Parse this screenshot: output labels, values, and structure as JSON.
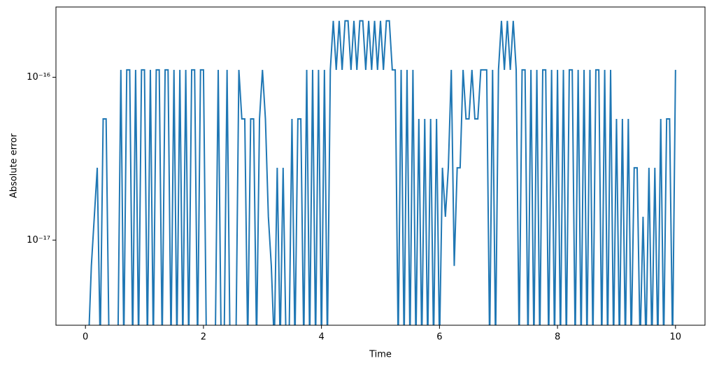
{
  "chart_data": {
    "type": "line",
    "xlabel": "Time",
    "ylabel": "Absolute error",
    "x": [
      0,
      0.05,
      0.1,
      0.15,
      0.2,
      0.25,
      0.3,
      0.35,
      0.4,
      0.45,
      0.5,
      0.55,
      0.6,
      0.65,
      0.7,
      0.75,
      0.8,
      0.85,
      0.9,
      0.95,
      1,
      1.05,
      1.1,
      1.15,
      1.2,
      1.25,
      1.3,
      1.35,
      1.4,
      1.45,
      1.5,
      1.55,
      1.6,
      1.65,
      1.7,
      1.75,
      1.8,
      1.85,
      1.9,
      1.95,
      2,
      2.05,
      2.1,
      2.15,
      2.2,
      2.25,
      2.3,
      2.35,
      2.4,
      2.45,
      2.5,
      2.55,
      2.6,
      2.65,
      2.7,
      2.75,
      2.8,
      2.85,
      2.9,
      2.95,
      3,
      3.05,
      3.1,
      3.15,
      3.2,
      3.25,
      3.3,
      3.35,
      3.4,
      3.45,
      3.5,
      3.55,
      3.6,
      3.65,
      3.7,
      3.75,
      3.8,
      3.85,
      3.9,
      3.95,
      4,
      4.05,
      4.1,
      4.15,
      4.2,
      4.25,
      4.3,
      4.35,
      4.4,
      4.45,
      4.5,
      4.55,
      4.6,
      4.65,
      4.7,
      4.75,
      4.8,
      4.85,
      4.9,
      4.95,
      5,
      5.05,
      5.1,
      5.15,
      5.2,
      5.25,
      5.3,
      5.35,
      5.4,
      5.45,
      5.5,
      5.55,
      5.6,
      5.65,
      5.7,
      5.75,
      5.8,
      5.85,
      5.9,
      5.95,
      6,
      6.05,
      6.1,
      6.15,
      6.2,
      6.25,
      6.3,
      6.35,
      6.4,
      6.45,
      6.5,
      6.55,
      6.6,
      6.65,
      6.7,
      6.75,
      6.8,
      6.85,
      6.9,
      6.95,
      7,
      7.05,
      7.1,
      7.15,
      7.2,
      7.25,
      7.3,
      7.35,
      7.4,
      7.45,
      7.5,
      7.55,
      7.6,
      7.65,
      7.7,
      7.75,
      7.8,
      7.85,
      7.9,
      7.95,
      8,
      8.05,
      8.1,
      8.15,
      8.2,
      8.25,
      8.3,
      8.35,
      8.4,
      8.45,
      8.5,
      8.55,
      8.6,
      8.65,
      8.7,
      8.75,
      8.8,
      8.85,
      8.9,
      8.95,
      9,
      9.05,
      9.1,
      9.15,
      9.2,
      9.25,
      9.3,
      9.35,
      9.4,
      9.45,
      9.5,
      9.55,
      9.6,
      9.65,
      9.7,
      9.75,
      9.8,
      9.85,
      9.9,
      9.95,
      10
    ],
    "values": [
      0,
      0,
      6.94e-18,
      1.39e-17,
      2.78e-17,
      0,
      5.55e-17,
      5.55e-17,
      0,
      0,
      0,
      0,
      1.11e-16,
      0,
      1.11e-16,
      1.11e-16,
      0,
      1.11e-16,
      0,
      1.11e-16,
      1.11e-16,
      0,
      1.11e-16,
      0,
      1.11e-16,
      1.11e-16,
      0,
      1.11e-16,
      1.11e-16,
      0,
      1.11e-16,
      0,
      1.11e-16,
      0,
      1.11e-16,
      0,
      1.11e-16,
      1.11e-16,
      0,
      1.11e-16,
      1.11e-16,
      0,
      0,
      0,
      0,
      1.11e-16,
      0,
      0,
      1.11e-16,
      0,
      0,
      0,
      1.11e-16,
      5.55e-17,
      5.55e-17,
      0,
      5.55e-17,
      5.55e-17,
      0,
      5.55e-17,
      1.11e-16,
      5.55e-17,
      1.39e-17,
      6.94e-18,
      0,
      2.78e-17,
      0,
      2.78e-17,
      0,
      0,
      5.55e-17,
      0,
      5.55e-17,
      5.55e-17,
      0,
      1.11e-16,
      0,
      1.11e-16,
      0,
      1.11e-16,
      0,
      1.11e-16,
      0,
      1.11e-16,
      2.22e-16,
      1.11e-16,
      2.22e-16,
      1.11e-16,
      2.22e-16,
      2.22e-16,
      1.11e-16,
      2.22e-16,
      1.11e-16,
      2.22e-16,
      2.22e-16,
      1.11e-16,
      2.22e-16,
      1.11e-16,
      2.22e-16,
      1.11e-16,
      2.22e-16,
      1.11e-16,
      2.22e-16,
      2.22e-16,
      1.11e-16,
      1.11e-16,
      0,
      1.11e-16,
      0,
      1.11e-16,
      0,
      1.11e-16,
      0,
      5.55e-17,
      0,
      5.55e-17,
      0,
      5.55e-17,
      0,
      5.55e-17,
      0,
      2.78e-17,
      1.39e-17,
      2.78e-17,
      1.11e-16,
      6.94e-18,
      2.78e-17,
      2.78e-17,
      1.11e-16,
      5.55e-17,
      5.55e-17,
      1.11e-16,
      5.55e-17,
      5.55e-17,
      1.11e-16,
      1.11e-16,
      1.11e-16,
      0,
      1.11e-16,
      0,
      1.11e-16,
      2.22e-16,
      1.11e-16,
      2.22e-16,
      1.11e-16,
      2.22e-16,
      1.11e-16,
      0,
      1.11e-16,
      1.11e-16,
      0,
      1.11e-16,
      0,
      1.11e-16,
      0,
      1.11e-16,
      1.11e-16,
      0,
      1.11e-16,
      0,
      1.11e-16,
      0,
      1.11e-16,
      0,
      1.11e-16,
      1.11e-16,
      0,
      1.11e-16,
      0,
      1.11e-16,
      0,
      1.11e-16,
      0,
      1.11e-16,
      1.11e-16,
      0,
      1.11e-16,
      0,
      1.11e-16,
      0,
      5.55e-17,
      0,
      5.55e-17,
      0,
      5.55e-17,
      0,
      2.78e-17,
      2.78e-17,
      0,
      1.39e-17,
      0,
      2.78e-17,
      0,
      2.78e-17,
      0,
      5.55e-17,
      0,
      5.55e-17,
      5.55e-17,
      0,
      1.11e-16
    ],
    "color": "#1f77b4",
    "log_y": true,
    "xlim": [
      -0.5,
      10.5
    ],
    "xticks": [
      0,
      2,
      4,
      6,
      8,
      10
    ],
    "ylim": [
      3e-18,
      2.7e-16
    ],
    "yticks": [
      {
        "value": 1e-17,
        "label": "10⁻¹⁷"
      },
      {
        "value": 1e-16,
        "label": "10⁻¹⁶"
      }
    ]
  }
}
